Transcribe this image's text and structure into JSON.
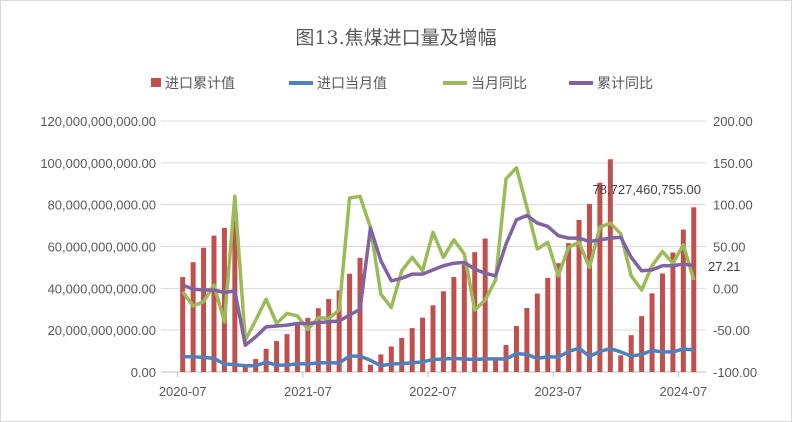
{
  "chart_data": {
    "type": "bar+line",
    "title": "图13.焦煤进口量及增幅",
    "legend_position": "top",
    "grid": true,
    "x_start": "2020-07",
    "x_tick_labels": [
      "2020-07",
      "2021-07",
      "2022-07",
      "2023-07",
      "2024-07"
    ],
    "y_left": {
      "range": [
        0,
        120000000000
      ],
      "ticks": [
        "0.00",
        "20,000,000,000.00",
        "40,000,000,000.00",
        "60,000,000,000.00",
        "80,000,000,000.00",
        "100,000,000,000.00",
        "120,000,000,000.00"
      ]
    },
    "y_right": {
      "range": [
        -100,
        200
      ],
      "ticks": [
        "-100.00",
        "-50.00",
        "0.00",
        "50.00",
        "100.00",
        "150.00",
        "200.00"
      ]
    },
    "series": [
      {
        "name": "进口累计值",
        "type": "bar",
        "axis": "left",
        "unit_billion": true,
        "color": "#C0504D",
        "values": [
          45.4,
          52.5,
          59.4,
          65.2,
          68.9,
          72.7,
          2.5,
          6.2,
          11.1,
          14.8,
          18.1,
          22.4,
          25.9,
          30.5,
          34.9,
          39.0,
          47.0,
          54.6,
          3.5,
          8.4,
          12.2,
          16.3,
          21.0,
          26.0,
          31.9,
          38.6,
          45.4,
          51.4,
          57.3,
          63.8,
          5.7,
          12.9,
          22.0,
          30.6,
          37.5,
          45.0,
          52.0,
          61.6,
          72.7,
          80.3,
          90.5,
          101.7,
          8.0,
          17.6,
          26.7,
          37.6,
          47.1,
          57.1,
          68.1,
          78.727460755
        ]
      },
      {
        "name": "进口当月值",
        "type": "line",
        "axis": "left",
        "unit_billion": true,
        "color": "#4F81BD",
        "values": [
          7.3,
          7.3,
          7.0,
          6.5,
          3.8,
          3.5,
          3.0,
          3.0,
          4.7,
          3.3,
          3.3,
          4.0,
          3.8,
          4.4,
          4.4,
          4.3,
          7.6,
          7.6,
          5.6,
          3.0,
          3.8,
          4.0,
          4.4,
          4.8,
          6.0,
          6.2,
          6.5,
          6.2,
          6.0,
          6.3,
          6.3,
          6.2,
          8.8,
          8.4,
          6.5,
          7.3,
          7.1,
          9.8,
          11.4,
          7.5,
          9.8,
          11.2,
          9.6,
          7.6,
          8.4,
          10.3,
          9.6,
          9.6,
          11.0,
          10.6
        ]
      },
      {
        "name": "当月同比",
        "type": "line",
        "axis": "right",
        "color": "#9BBB59",
        "values": [
          -4,
          -21,
          -16,
          4,
          -40,
          110,
          -62,
          -38,
          -13,
          -42,
          -30,
          -33,
          -49,
          -35,
          -36,
          -26,
          108,
          110,
          73,
          -7,
          -23,
          21,
          37,
          21,
          67,
          37,
          58,
          41,
          -26,
          -14,
          10,
          131,
          144,
          97,
          47,
          55,
          15,
          49,
          55,
          25,
          73,
          78,
          65,
          15,
          -2,
          27,
          44,
          30,
          52,
          10
        ]
      },
      {
        "name": "累计同比",
        "type": "line",
        "axis": "right",
        "color": "#8064A2",
        "values": [
          4,
          -1,
          -2,
          -2,
          -5,
          -3,
          -68,
          -58,
          -46,
          -45,
          -44,
          -42,
          -42,
          -41,
          -40,
          -39,
          -32,
          -25,
          72,
          33,
          9,
          12,
          17,
          17,
          22,
          27,
          30,
          31,
          23,
          18,
          15,
          53,
          82,
          87,
          78,
          74,
          63,
          60,
          60,
          56,
          58,
          60,
          61,
          37,
          21,
          22,
          27,
          27,
          29,
          27.21
        ]
      }
    ],
    "annotations": [
      "78,727,460,755.00",
      "27.21"
    ]
  }
}
